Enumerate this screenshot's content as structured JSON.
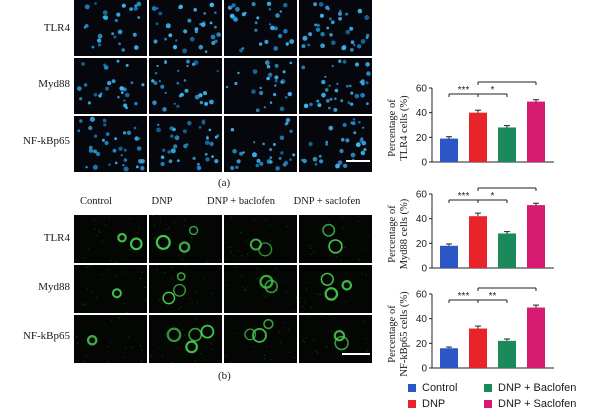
{
  "panel_a": {
    "rows": [
      "TLR4",
      "Myd88",
      "NF-kBp65"
    ],
    "letter": "(a)"
  },
  "panel_b": {
    "columns": [
      "Control",
      "DNP",
      "DNP + baclofen",
      "DNP + saclofen"
    ],
    "rows": [
      "TLR4",
      "Myd88",
      "NF-kBp65"
    ],
    "letter": "(b)"
  },
  "legend": {
    "items": [
      {
        "label": "Control",
        "color": "#2a56c6"
      },
      {
        "label": "DNP",
        "color": "#e8232a"
      },
      {
        "label": "DNP + Baclofen",
        "color": "#1b8a5a"
      },
      {
        "label": "DNP + Saclofen",
        "color": "#d81b72"
      }
    ]
  },
  "chart_data": [
    {
      "type": "bar",
      "ylabel": "Percentage of TLR4 cells (%)",
      "ylabel_lines": [
        "Percentage of",
        "TLR4 cells (%)"
      ],
      "categories": [
        "Control",
        "DNP",
        "DNP + Baclofen",
        "DNP + Saclofen"
      ],
      "values": [
        19,
        40,
        28,
        49
      ],
      "errors": [
        1.5,
        2,
        1.5,
        1.5
      ],
      "ylim": [
        0,
        60
      ],
      "yticks": [
        "0",
        "20",
        "40",
        "60"
      ],
      "brackets": [
        {
          "from": 0,
          "to": 1,
          "label": "***",
          "level": 0
        },
        {
          "from": 1,
          "to": 2,
          "label": "*",
          "level": 0
        },
        {
          "from": 1,
          "to": 3,
          "label": "*",
          "level": 1
        }
      ]
    },
    {
      "type": "bar",
      "ylabel": "Percentage of Myd88 cells (%)",
      "ylabel_lines": [
        "Percentage of",
        "Myd88 cells (%)"
      ],
      "categories": [
        "Control",
        "DNP",
        "DNP + Baclofen",
        "DNP + Saclofen"
      ],
      "values": [
        18,
        42,
        28,
        51
      ],
      "errors": [
        1.5,
        2.5,
        1.5,
        1.5
      ],
      "ylim": [
        0,
        60
      ],
      "yticks": [
        "0",
        "20",
        "40",
        "60"
      ],
      "brackets": [
        {
          "from": 0,
          "to": 1,
          "label": "***",
          "level": 0
        },
        {
          "from": 1,
          "to": 2,
          "label": "*",
          "level": 0
        },
        {
          "from": 1,
          "to": 3,
          "label": "*",
          "level": 1
        }
      ]
    },
    {
      "type": "bar",
      "ylabel": "Percentage of NF-kBp65 cells (%)",
      "ylabel_lines": [
        "Percentage of",
        "NF-kBp65 cells (%)"
      ],
      "categories": [
        "Control",
        "DNP",
        "DNP + Baclofen",
        "DNP + Saclofen"
      ],
      "values": [
        16,
        32,
        22,
        49
      ],
      "errors": [
        1,
        2,
        1.5,
        2
      ],
      "ylim": [
        0,
        60
      ],
      "yticks": [
        "0",
        "20",
        "40",
        "60"
      ],
      "brackets": [
        {
          "from": 0,
          "to": 1,
          "label": "***",
          "level": 0
        },
        {
          "from": 1,
          "to": 2,
          "label": "**",
          "level": 0
        },
        {
          "from": 1,
          "to": 3,
          "label": "**",
          "level": 1
        }
      ]
    }
  ]
}
